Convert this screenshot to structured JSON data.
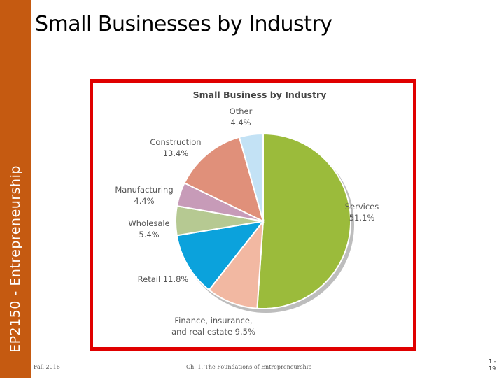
{
  "sidebar": {
    "text": "EP2150 - Entrepreneurship"
  },
  "slide": {
    "title": "Small Businesses by Industry"
  },
  "footer": {
    "left": "Fall 2016",
    "center": "Ch. 1.  The Foundations of Entrepreneurship",
    "page_line1": "1 -",
    "page_line2": "19"
  },
  "colors": {
    "sidebar": "#c55a11",
    "frame": "#e00000"
  },
  "chart_data": {
    "type": "pie",
    "title": "Small Business by Industry",
    "unit": "%",
    "slices": [
      {
        "label": "Services",
        "value": 51.1,
        "value_label": "51.1%",
        "color": "#9bbb3b"
      },
      {
        "label": "Finance, insurance, and real estate",
        "value": 9.5,
        "value_label": "9.5%",
        "color": "#f2b8a2"
      },
      {
        "label": "Retail",
        "value": 11.8,
        "value_label": "11.8%",
        "color": "#0ba2dc"
      },
      {
        "label": "Wholesale",
        "value": 5.4,
        "value_label": "5.4%",
        "color": "#b6c992"
      },
      {
        "label": "Manufacturing",
        "value": 4.4,
        "value_label": "4.4%",
        "color": "#c79bb8"
      },
      {
        "label": "Construction",
        "value": 13.4,
        "value_label": "13.4%",
        "color": "#e0907a"
      },
      {
        "label": "Other",
        "value": 4.4,
        "value_label": "4.4%",
        "color": "#c3e2f5"
      }
    ],
    "label_lines": [
      {
        "slice": 0,
        "lines": [
          "Services",
          "51.1%"
        ]
      },
      {
        "slice": 1,
        "lines": [
          "Finance, insurance,",
          "and real estate 9.5%"
        ]
      },
      {
        "slice": 2,
        "lines": [
          "Retail 11.8%"
        ]
      },
      {
        "slice": 3,
        "lines": [
          "Wholesale",
          "5.4%"
        ]
      },
      {
        "slice": 4,
        "lines": [
          "Manufacturing",
          "4.4%"
        ]
      },
      {
        "slice": 5,
        "lines": [
          "Construction",
          "13.4%"
        ]
      },
      {
        "slice": 6,
        "lines": [
          "Other",
          "4.4%"
        ]
      }
    ]
  }
}
